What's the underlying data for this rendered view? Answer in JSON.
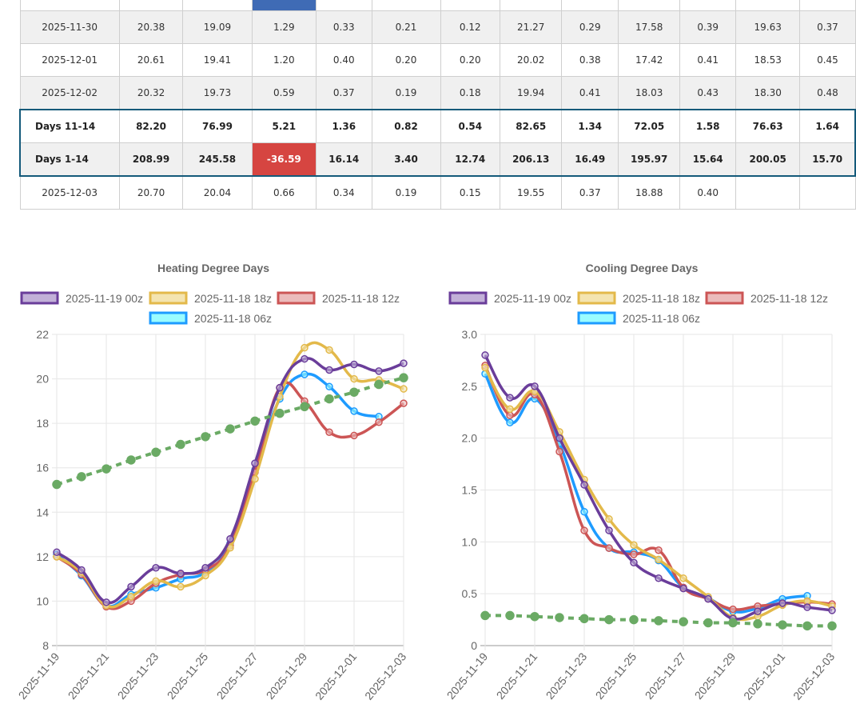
{
  "table": {
    "rows": [
      {
        "kind": "partial",
        "cells": [
          "",
          "",
          "",
          "",
          "",
          "",
          "",
          "",
          "",
          "",
          "",
          "",
          "",
          ""
        ]
      },
      {
        "kind": "gray",
        "cells": [
          "2025-11-30",
          "20.38",
          "19.09",
          "1.29",
          "0.33",
          "0.21",
          "0.12",
          "21.27",
          "0.29",
          "17.58",
          "0.39",
          "19.63",
          "0.37"
        ]
      },
      {
        "kind": "white",
        "cells": [
          "2025-12-01",
          "20.61",
          "19.41",
          "1.20",
          "0.40",
          "0.20",
          "0.20",
          "20.02",
          "0.38",
          "17.42",
          "0.41",
          "18.53",
          "0.45"
        ]
      },
      {
        "kind": "gray",
        "cells": [
          "2025-12-02",
          "20.32",
          "19.73",
          "0.59",
          "0.37",
          "0.19",
          "0.18",
          "19.94",
          "0.41",
          "18.03",
          "0.43",
          "18.30",
          "0.48"
        ]
      },
      {
        "kind": "sum-first",
        "cells": [
          "Days 11-14",
          "82.20",
          "76.99",
          "5.21",
          "1.36",
          "0.82",
          "0.54",
          "82.65",
          "1.34",
          "72.05",
          "1.58",
          "76.63",
          "1.64"
        ]
      },
      {
        "kind": "sum-last",
        "cells": [
          "Days 1-14",
          "208.99",
          "245.58",
          "-36.59",
          "16.14",
          "3.40",
          "12.74",
          "206.13",
          "16.49",
          "195.97",
          "15.64",
          "200.05",
          "15.70"
        ]
      },
      {
        "kind": "white",
        "cells": [
          "2025-12-03",
          "20.70",
          "20.04",
          "0.66",
          "0.34",
          "0.19",
          "0.15",
          "19.55",
          "0.37",
          "18.88",
          "0.40",
          "",
          ""
        ]
      }
    ],
    "colors": {
      "negative_cell": "#d64541",
      "highlight_header": "#3f6bb5",
      "summary_border": "#145a7a"
    }
  },
  "chart_data": [
    {
      "type": "line",
      "title": "Heating Degree Days",
      "xlabel": "",
      "ylabel": "",
      "x": [
        "2025-11-19",
        "2025-11-20",
        "2025-11-21",
        "2025-11-22",
        "2025-11-23",
        "2025-11-24",
        "2025-11-25",
        "2025-11-26",
        "2025-11-27",
        "2025-11-28",
        "2025-11-29",
        "2025-11-30",
        "2025-12-01",
        "2025-12-02",
        "2025-12-03"
      ],
      "x_tick_labels": [
        "2025-11-19",
        "2025-11-21",
        "2025-11-23",
        "2025-11-25",
        "2025-11-27",
        "2025-11-29",
        "2025-12-01",
        "2025-12-03"
      ],
      "ylim": [
        8,
        22
      ],
      "y_ticks": [
        8,
        10,
        12,
        14,
        16,
        18,
        20,
        22
      ],
      "grid": true,
      "legend_position": "top",
      "series": [
        {
          "name": "2025-11-19 00z",
          "color": "#6a3d9a",
          "fill": "#c2b0d8",
          "dashed": false,
          "values": [
            12.2,
            11.4,
            9.95,
            10.65,
            11.5,
            11.25,
            11.5,
            12.8,
            16.2,
            19.6,
            20.9,
            20.4,
            20.65,
            20.35,
            20.7
          ]
        },
        {
          "name": "2025-11-18 18z",
          "color": "#e3b94a",
          "fill": "#f4e4b0",
          "dashed": false,
          "values": [
            12.0,
            11.3,
            9.8,
            10.2,
            10.9,
            10.65,
            11.15,
            12.4,
            15.5,
            19.2,
            21.4,
            21.3,
            20.0,
            19.95,
            19.55
          ]
        },
        {
          "name": "2025-11-18 12z",
          "color": "#cc5555",
          "fill": "#ebbbbb",
          "dashed": false,
          "values": [
            12.0,
            11.2,
            9.75,
            10.0,
            10.8,
            11.2,
            11.4,
            12.5,
            15.8,
            19.6,
            19.0,
            17.6,
            17.45,
            18.05,
            18.9
          ]
        },
        {
          "name": "2025-11-18 06z",
          "color": "#1e9bff",
          "fill": "#9afcff",
          "dashed": false,
          "values": [
            12.1,
            11.15,
            9.8,
            10.3,
            10.6,
            11.0,
            11.3,
            12.6,
            15.9,
            19.1,
            20.2,
            19.65,
            18.55,
            18.3,
            null
          ]
        },
        {
          "name": "Normal",
          "color": "#6aaa64",
          "fill": "#6aaa64",
          "dashed": true,
          "in_legend": false,
          "values": [
            15.25,
            15.6,
            15.95,
            16.35,
            16.7,
            17.05,
            17.4,
            17.75,
            18.1,
            18.45,
            18.75,
            19.1,
            19.4,
            19.75,
            20.05
          ]
        }
      ]
    },
    {
      "type": "line",
      "title": "Cooling Degree Days",
      "xlabel": "",
      "ylabel": "",
      "x": [
        "2025-11-19",
        "2025-11-20",
        "2025-11-21",
        "2025-11-22",
        "2025-11-23",
        "2025-11-24",
        "2025-11-25",
        "2025-11-26",
        "2025-11-27",
        "2025-11-28",
        "2025-11-29",
        "2025-11-30",
        "2025-12-01",
        "2025-12-02",
        "2025-12-03"
      ],
      "x_tick_labels": [
        "2025-11-19",
        "2025-11-21",
        "2025-11-23",
        "2025-11-25",
        "2025-11-27",
        "2025-11-29",
        "2025-12-01",
        "2025-12-03"
      ],
      "ylim": [
        0,
        3.0
      ],
      "y_ticks": [
        "0",
        "0.5",
        "1.0",
        "1.5",
        "2.0",
        "2.5",
        "3.0"
      ],
      "grid": true,
      "legend_position": "top",
      "series": [
        {
          "name": "2025-11-19 00z",
          "color": "#6a3d9a",
          "fill": "#c2b0d8",
          "dashed": false,
          "values": [
            2.8,
            2.39,
            2.5,
            2.0,
            1.55,
            1.11,
            0.8,
            0.65,
            0.55,
            0.45,
            0.26,
            0.33,
            0.41,
            0.37,
            0.34
          ]
        },
        {
          "name": "2025-11-18 18z",
          "color": "#e3b94a",
          "fill": "#f4e4b0",
          "dashed": false,
          "values": [
            2.68,
            2.28,
            2.45,
            2.06,
            1.6,
            1.22,
            0.97,
            0.83,
            0.65,
            0.47,
            0.27,
            0.28,
            0.39,
            0.43,
            0.38
          ]
        },
        {
          "name": "2025-11-18 12z",
          "color": "#cc5555",
          "fill": "#ebbbbb",
          "dashed": false,
          "values": [
            2.7,
            2.22,
            2.42,
            1.87,
            1.11,
            0.94,
            0.88,
            0.92,
            0.56,
            0.45,
            0.35,
            0.38,
            0.4,
            0.42,
            0.4
          ]
        },
        {
          "name": "2025-11-18 06z",
          "color": "#1e9bff",
          "fill": "#9afcff",
          "dashed": false,
          "values": [
            2.62,
            2.15,
            2.38,
            1.95,
            1.29,
            0.94,
            0.9,
            0.82,
            0.56,
            0.46,
            0.33,
            0.36,
            0.45,
            0.48,
            null
          ]
        },
        {
          "name": "Normal",
          "color": "#6aaa64",
          "fill": "#6aaa64",
          "dashed": true,
          "in_legend": false,
          "values": [
            0.29,
            0.29,
            0.28,
            0.27,
            0.26,
            0.25,
            0.25,
            0.24,
            0.23,
            0.22,
            0.22,
            0.21,
            0.2,
            0.19,
            0.19
          ]
        }
      ]
    }
  ]
}
